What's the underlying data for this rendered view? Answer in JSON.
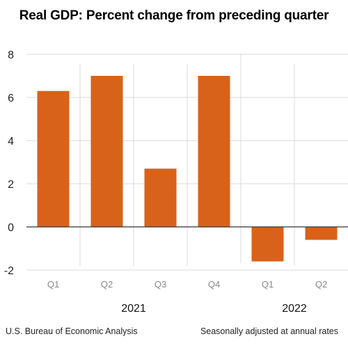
{
  "chart_data": {
    "type": "bar",
    "title": "Real GDP:  Percent change from preceding quarter",
    "categories": [
      "Q1",
      "Q2",
      "Q3",
      "Q4",
      "Q1",
      "Q2"
    ],
    "values": [
      6.3,
      7.0,
      2.7,
      7.0,
      -1.6,
      -0.6
    ],
    "groups": [
      {
        "label": "2021",
        "start": 0,
        "end": 3
      },
      {
        "label": "2022",
        "start": 4,
        "end": 5
      }
    ],
    "yticks": [
      -2,
      0,
      2,
      4,
      6,
      8
    ],
    "ylim": [
      -2,
      8
    ],
    "xlabel": "",
    "ylabel": "",
    "bar_color": "#d9621b",
    "grid": true
  },
  "footer": {
    "source": "U.S. Bureau of Economic Analysis",
    "note": "Seasonally adjusted at annual rates"
  }
}
